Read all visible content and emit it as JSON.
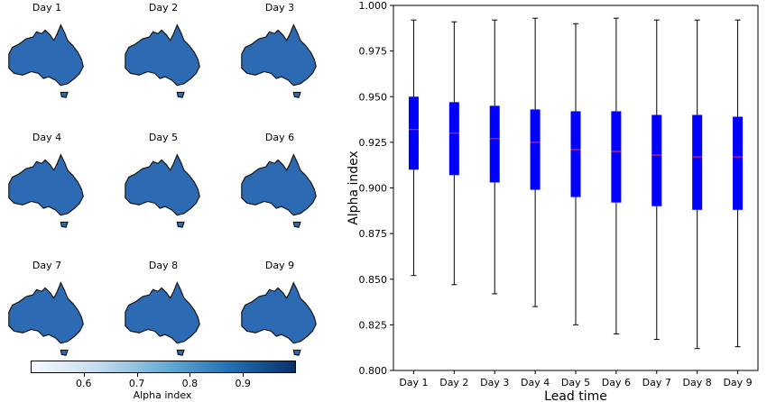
{
  "maps": {
    "panels": [
      "Day 1",
      "Day 2",
      "Day 3",
      "Day 4",
      "Day 5",
      "Day 6",
      "Day 7",
      "Day 8",
      "Day 9"
    ],
    "colorbar": {
      "label": "Alpha index",
      "ticks": [
        "0.6",
        "0.7",
        "0.8",
        "0.9"
      ],
      "tick_values": [
        0.6,
        0.7,
        0.8,
        0.9
      ],
      "range": [
        0.5,
        1.0
      ],
      "colormap": [
        "#f7fbff",
        "#c6dbef",
        "#6baed6",
        "#2171b5",
        "#08306b"
      ]
    },
    "map_fill_color": "#2c6bb3"
  },
  "chart_data": {
    "type": "box",
    "categories": [
      "Day 1",
      "Day 2",
      "Day 3",
      "Day 4",
      "Day 5",
      "Day 6",
      "Day 7",
      "Day 8",
      "Day 9"
    ],
    "boxes": [
      {
        "min": 0.852,
        "q1": 0.91,
        "median": 0.932,
        "q3": 0.95,
        "max": 0.992
      },
      {
        "min": 0.847,
        "q1": 0.907,
        "median": 0.93,
        "q3": 0.947,
        "max": 0.991
      },
      {
        "min": 0.842,
        "q1": 0.903,
        "median": 0.927,
        "q3": 0.945,
        "max": 0.992
      },
      {
        "min": 0.835,
        "q1": 0.899,
        "median": 0.925,
        "q3": 0.943,
        "max": 0.993
      },
      {
        "min": 0.825,
        "q1": 0.895,
        "median": 0.921,
        "q3": 0.942,
        "max": 0.99
      },
      {
        "min": 0.82,
        "q1": 0.892,
        "median": 0.92,
        "q3": 0.942,
        "max": 0.993
      },
      {
        "min": 0.817,
        "q1": 0.89,
        "median": 0.918,
        "q3": 0.94,
        "max": 0.992
      },
      {
        "min": 0.812,
        "q1": 0.888,
        "median": 0.917,
        "q3": 0.94,
        "max": 0.992
      },
      {
        "min": 0.813,
        "q1": 0.888,
        "median": 0.917,
        "q3": 0.939,
        "max": 0.992
      }
    ],
    "xlabel": "Lead time",
    "ylabel": "Alpha index",
    "ylim": [
      0.8,
      1.0
    ],
    "yticks": [
      "0.800",
      "0.825",
      "0.850",
      "0.875",
      "0.900",
      "0.925",
      "0.950",
      "0.975",
      "1.000"
    ],
    "ytick_values": [
      0.8,
      0.825,
      0.85,
      0.875,
      0.9,
      0.925,
      0.95,
      0.975,
      1.0
    ],
    "grid": false,
    "box_color": "#0000ff",
    "median_color": "#ff3333",
    "whisker_color": "#000000"
  }
}
